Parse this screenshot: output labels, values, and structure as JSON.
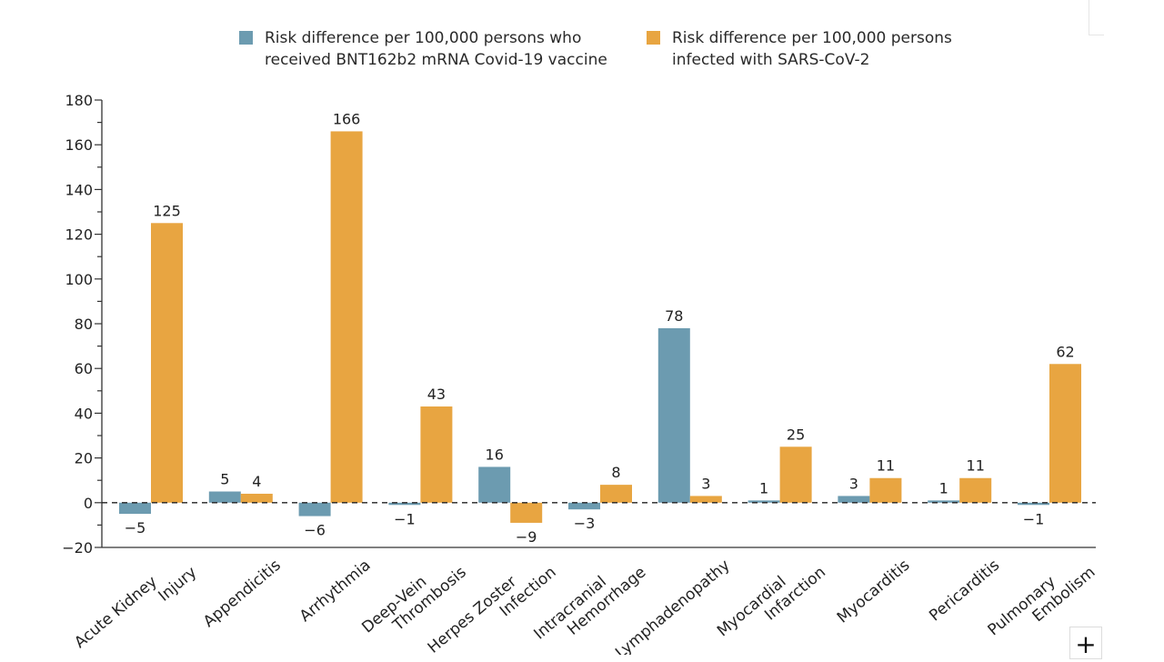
{
  "chart_data": {
    "type": "bar",
    "categories": [
      [
        "Acute Kidney",
        "Injury"
      ],
      [
        "Appendicitis"
      ],
      [
        "Arrhythmia"
      ],
      [
        "Deep-Vein",
        "Thrombosis"
      ],
      [
        "Herpes Zoster",
        "Infection"
      ],
      [
        "Intracranial",
        "Hemorrhage"
      ],
      [
        "Lymphadenopathy"
      ],
      [
        "Myocardial",
        "Infarction"
      ],
      [
        "Myocarditis"
      ],
      [
        "Pericarditis"
      ],
      [
        "Pulmonary",
        "Embolism"
      ]
    ],
    "series": [
      {
        "name": "Risk difference per 100,000 persons who received BNT162b2 mRNA Covid-19 vaccine",
        "legend_lines": [
          "Risk difference per 100,000 persons who",
          "received BNT162b2 mRNA Covid-19 vaccine"
        ],
        "color": "#6c9bb0",
        "values": [
          -5,
          5,
          -6,
          -1,
          16,
          -3,
          78,
          1,
          3,
          1,
          -1
        ],
        "labels": [
          "−5",
          "5",
          "−6",
          "−1",
          "16",
          "−3",
          "78",
          "1",
          "3",
          "1",
          "−1"
        ]
      },
      {
        "name": "Risk difference per 100,000 persons infected with SARS-CoV-2",
        "legend_lines": [
          "Risk difference per 100,000 persons",
          "infected with SARS-CoV-2"
        ],
        "color": "#e8a541",
        "values": [
          125,
          4,
          166,
          43,
          -9,
          8,
          3,
          25,
          11,
          11,
          62
        ],
        "labels": [
          "125",
          "4",
          "166",
          "43",
          "−9",
          "8",
          "3",
          "25",
          "11",
          "11",
          "62"
        ]
      }
    ],
    "yticks": [
      -20,
      0,
      20,
      40,
      60,
      80,
      100,
      120,
      140,
      160,
      180
    ],
    "ytick_labels": [
      "−20",
      "0",
      "20",
      "40",
      "60",
      "80",
      "100",
      "120",
      "140",
      "160",
      "180"
    ],
    "ylim": [
      -20,
      180
    ],
    "zero_line": "dashed",
    "legend_position": "top",
    "grid": false
  },
  "ui": {
    "zoom_button_label": "+"
  }
}
